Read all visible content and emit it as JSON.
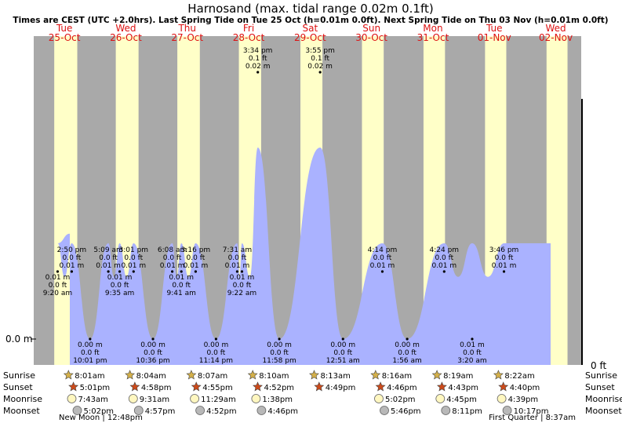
{
  "chart_data": {
    "type": "area",
    "title": "Harnosand (max. tidal range 0.02m 0.1ft)",
    "subtitle": "Times are CEST (UTC +2.0hrs). Last Spring Tide on Tue 25 Oct (h=0.01m 0.0ft). Next Spring Tide on Thu 03 Nov (h=0.01m 0.0ft)",
    "y_label_left": "0.0 m",
    "y_label_right": "0 ft",
    "ylim_m": [
      0,
      0.02
    ],
    "days": [
      {
        "dow": "Tue",
        "date": "25-Oct"
      },
      {
        "dow": "Wed",
        "date": "26-Oct"
      },
      {
        "dow": "Thu",
        "date": "27-Oct"
      },
      {
        "dow": "Fri",
        "date": "28-Oct"
      },
      {
        "dow": "Sat",
        "date": "29-Oct"
      },
      {
        "dow": "Sun",
        "date": "30-Oct"
      },
      {
        "dow": "Mon",
        "date": "31-Oct"
      },
      {
        "dow": "Tue",
        "date": "01-Nov"
      },
      {
        "dow": "Wed",
        "date": "02-Nov"
      }
    ],
    "tide_events": [
      {
        "day": 0,
        "time": "9:20 am",
        "ft": "0.0 ft",
        "m": "0.01 m",
        "kind": "high",
        "label_pos": "below"
      },
      {
        "day": 0,
        "time": "2:50 pm",
        "ft": "0.0 ft",
        "m": "0.01 m",
        "kind": "high",
        "label_pos": "above"
      },
      {
        "day": 0,
        "time": "10:01 pm",
        "ft": "0.0 ft",
        "m": "0.00 m",
        "kind": "low",
        "label_pos": "below"
      },
      {
        "day": 1,
        "time": "5:09 am",
        "ft": "0.0 ft",
        "m": "0.01 m",
        "kind": "high",
        "label_pos": "above"
      },
      {
        "day": 1,
        "time": "9:35 am",
        "ft": "0.0 ft",
        "m": "0.01 m",
        "kind": "high",
        "label_pos": "below"
      },
      {
        "day": 1,
        "time": "3:01 pm",
        "ft": "0.0 ft",
        "m": "0.01 m",
        "kind": "high",
        "label_pos": "above"
      },
      {
        "day": 1,
        "time": "10:36 pm",
        "ft": "0.0 ft",
        "m": "0.00 m",
        "kind": "low",
        "label_pos": "below"
      },
      {
        "day": 2,
        "time": "6:08 am",
        "ft": "0.0 ft",
        "m": "0.01 m",
        "kind": "high",
        "label_pos": "above"
      },
      {
        "day": 2,
        "time": "9:41 am",
        "ft": "0.0 ft",
        "m": "0.01 m",
        "kind": "high",
        "label_pos": "below"
      },
      {
        "day": 2,
        "time": "3:16 pm",
        "ft": "0.0 ft",
        "m": "0.01 m",
        "kind": "high",
        "label_pos": "above"
      },
      {
        "day": 2,
        "time": "11:14 pm",
        "ft": "0.0 ft",
        "m": "0.00 m",
        "kind": "low",
        "label_pos": "below"
      },
      {
        "day": 3,
        "time": "7:31 am",
        "ft": "0.0 ft",
        "m": "0.01 m",
        "kind": "high",
        "label_pos": "above"
      },
      {
        "day": 3,
        "time": "9:22 am",
        "ft": "0.0 ft",
        "m": "0.01 m",
        "kind": "high",
        "label_pos": "below"
      },
      {
        "day": 3,
        "time": "3:34 pm",
        "ft": "0.1 ft",
        "m": "0.02 m",
        "kind": "high",
        "label_pos": "above"
      },
      {
        "day": 3,
        "time": "11:58 pm",
        "ft": "0.0 ft",
        "m": "0.00 m",
        "kind": "low",
        "label_pos": "below"
      },
      {
        "day": 4,
        "time": "3:55 pm",
        "ft": "0.1 ft",
        "m": "0.02 m",
        "kind": "high",
        "label_pos": "above"
      },
      {
        "day": 5,
        "time": "12:51 am",
        "ft": "0.0 ft",
        "m": "0.00 m",
        "kind": "low",
        "label_pos": "below"
      },
      {
        "day": 5,
        "time": "4:14 pm",
        "ft": "0.0 ft",
        "m": "0.01 m",
        "kind": "high",
        "label_pos": "above"
      },
      {
        "day": 6,
        "time": "1:56 am",
        "ft": "0.0 ft",
        "m": "0.00 m",
        "kind": "low",
        "label_pos": "below"
      },
      {
        "day": 6,
        "time": "4:24 pm",
        "ft": "0.0 ft",
        "m": "0.01 m",
        "kind": "high",
        "label_pos": "above"
      },
      {
        "day": 7,
        "time": "3:20 am",
        "ft": "0.0 ft",
        "m": "0.01 m",
        "kind": "low",
        "label_pos": "below"
      },
      {
        "day": 7,
        "time": "3:46 pm",
        "ft": "0.0 ft",
        "m": "0.01 m",
        "kind": "high",
        "label_pos": "above"
      }
    ],
    "astro_rows": [
      {
        "label": "Sunrise",
        "icon": "sunrise-star-icon",
        "color": "#d4b04a",
        "times": [
          "8:01am",
          "8:04am",
          "8:07am",
          "8:10am",
          "8:13am",
          "8:16am",
          "8:19am",
          "8:22am"
        ]
      },
      {
        "label": "Sunset",
        "icon": "sunset-star-icon",
        "color": "#cc4a1a",
        "times": [
          "5:01pm",
          "4:58pm",
          "4:55pm",
          "4:52pm",
          "4:49pm",
          "4:46pm",
          "4:43pm",
          "4:40pm"
        ]
      },
      {
        "label": "Moonrise",
        "icon": "moonrise-icon",
        "color": "#fff7c0",
        "times": [
          "7:43am",
          "9:31am",
          "11:29am",
          "1:38pm",
          "",
          "5:02pm",
          "4:45pm",
          "4:39pm"
        ]
      },
      {
        "label": "Moonset",
        "icon": "moonset-icon",
        "color": "#b8b8b8",
        "times": [
          "5:02pm",
          "4:57pm",
          "4:52pm",
          "4:46pm",
          "",
          "5:46pm",
          "8:11pm",
          "10:17pm"
        ]
      }
    ],
    "moon_phases": [
      {
        "text": "New Moon | 12:48pm",
        "day": 0
      },
      {
        "text": "First Quarter | 8:37am",
        "day": 7
      }
    ],
    "colors": {
      "night": "#a9a9a9",
      "day": "#ffffc8",
      "tide_fill": "#aab2ff",
      "date_red": "#dd1111",
      "title": "#000000"
    }
  }
}
